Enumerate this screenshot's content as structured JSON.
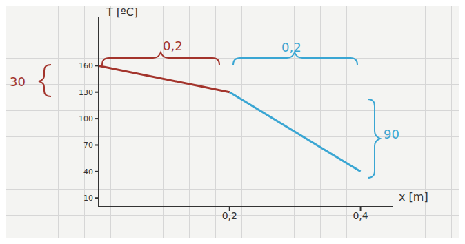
{
  "chart_data": {
    "type": "line",
    "x_label": "x [m]",
    "y_label": "T [ºC]",
    "xlim": [
      0,
      0.45
    ],
    "xticks": [
      {
        "value": 0.2,
        "label": "0,2"
      },
      {
        "value": 0.4,
        "label": "0,4"
      }
    ],
    "ylim": [
      0,
      215
    ],
    "yticks": [
      10,
      40,
      70,
      100,
      130,
      160
    ],
    "grid": false,
    "series": [
      {
        "color": "#a3342c",
        "x": [
          0,
          0.2
        ],
        "values": [
          160,
          130
        ],
        "annotations": [
          "0,2",
          "30"
        ]
      },
      {
        "color": "#3aa6d3",
        "x": [
          0.2,
          0.4
        ],
        "values": [
          130,
          40
        ],
        "annotations": [
          "0,2",
          "90"
        ]
      }
    ]
  }
}
